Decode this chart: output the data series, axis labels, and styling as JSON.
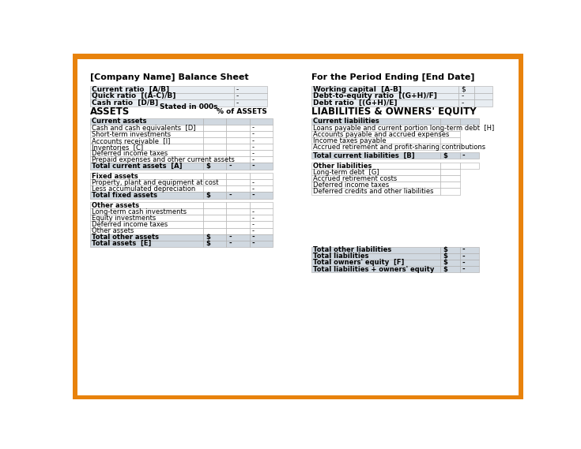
{
  "title_left": "[Company Name] Balance Sheet",
  "title_right": "For the Period Ending [End Date]",
  "border_color": "#E8820C",
  "bg_color": "#FFFFFF",
  "header_bg": "#D0D8E0",
  "row_bg_light": "#E8EDF2",
  "bold_row_bg": "#D0D8E0",
  "top_left_rows": [
    [
      "Current ratio  [A/B]",
      "-"
    ],
    [
      "Quick ratio  [(A-C)/B]",
      "-"
    ],
    [
      "Cash ratio  [D/B]",
      "-"
    ]
  ],
  "top_right_rows": [
    [
      "Working capital  [A-B]",
      "$"
    ],
    [
      "Debt-to-equity ratio  [(G+H)/F]",
      "-"
    ],
    [
      "Debt ratio  [(G+H)/E]",
      "-"
    ]
  ],
  "stated_text": "Stated in 000s",
  "assets_header": "ASSETS",
  "assets_pct_header": "% of ASSETS",
  "liabilities_header": "LIABILITIES & OWNERS' EQUITY",
  "current_assets_rows": [
    [
      "Cash and cash equivalents  [D]",
      "",
      "",
      "-"
    ],
    [
      "Short-term investments",
      "",
      "",
      "-"
    ],
    [
      "Accounts receivable  [I]",
      "",
      "",
      "-"
    ],
    [
      "Inventories  [C]",
      "",
      "",
      "-"
    ],
    [
      "Deferred income taxes",
      "",
      "",
      "-"
    ],
    [
      "Prepaid expenses and other current assets",
      "",
      "",
      "-"
    ]
  ],
  "current_assets_header": "Current assets",
  "current_assets_total": [
    "Total current assets  [A]",
    "$",
    "-",
    "-"
  ],
  "fixed_assets_header": "Fixed assets",
  "fixed_assets_rows": [
    [
      "Property, plant and equipment at cost",
      "",
      "",
      "-"
    ],
    [
      "Less accumulated depreciation",
      "",
      "",
      "-"
    ]
  ],
  "fixed_assets_total": [
    "Total fixed assets",
    "$",
    "-",
    "-"
  ],
  "other_assets_header": "Other assets",
  "other_assets_rows": [
    [
      "Long-term cash investments",
      "",
      "",
      "-"
    ],
    [
      "Equity investments",
      "",
      "",
      "-"
    ],
    [
      "Deferred income taxes",
      "",
      "",
      "-"
    ],
    [
      "Other assets",
      "",
      "",
      "-"
    ]
  ],
  "other_assets_total": [
    "Total other assets",
    "$",
    "-",
    "-"
  ],
  "total_assets": [
    "Total assets  [E]",
    "$",
    "-",
    "-"
  ],
  "current_liab_header": "Current liabilities",
  "current_liab_rows": [
    "Loans payable and current portion long-term debt  [H]",
    "Accounts payable and accrued expenses",
    "Income taxes payable",
    "Accrued retirement and profit-sharing contributions"
  ],
  "current_liab_total": [
    "Total current liabilities  [B]",
    "$",
    "-"
  ],
  "other_liab_header": "Other liabilities",
  "other_liab_rows": [
    "Long-term debt  [G]",
    "Accrued retirement costs",
    "Deferred income taxes",
    "Deferred credits and other liabilities"
  ],
  "equity_totals": [
    [
      "Total other liabilities",
      "$",
      "-"
    ],
    [
      "Total liabilities",
      "$",
      "-"
    ],
    [
      "Total owners' equity  [F]",
      "$",
      "-"
    ],
    [
      "Total liabilities + owners' equity",
      "$",
      "-"
    ]
  ]
}
